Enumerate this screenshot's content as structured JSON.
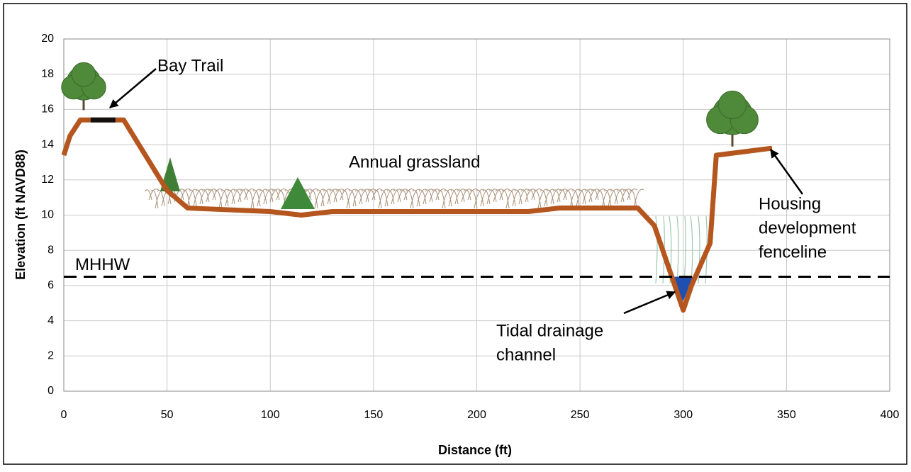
{
  "chart_data": {
    "type": "line",
    "xlabel": "Distance (ft)",
    "ylabel": "Elevation (ft NAVD88)",
    "xlim": [
      0,
      400
    ],
    "xticks": [
      0,
      50,
      100,
      150,
      200,
      250,
      300,
      350,
      400
    ],
    "ylim": [
      0,
      20
    ],
    "yticks": [
      0,
      2,
      4,
      6,
      8,
      10,
      12,
      14,
      16,
      18,
      20
    ],
    "grid": true,
    "series": [
      {
        "color": "#b5561f",
        "x": [
          0,
          3,
          8,
          29,
          50,
          60,
          100,
          115,
          130,
          225,
          240,
          278,
          286,
          293,
          300,
          304,
          313,
          316,
          343
        ],
        "values": [
          13.4,
          14.5,
          15.4,
          15.4,
          11.4,
          10.4,
          10.2,
          10.0,
          10.2,
          10.2,
          10.4,
          10.4,
          9.4,
          7.0,
          4.6,
          6.0,
          8.4,
          13.4,
          13.8
        ]
      },
      {
        "color": "#111111",
        "x": [
          13,
          25
        ],
        "values": [
          15.4,
          15.4
        ]
      }
    ],
    "reference_lines": [
      {
        "label": "MHHW",
        "value": 6.5,
        "color": "#000000"
      }
    ],
    "annotations": [
      {
        "lines": [
          "Bay Trail"
        ]
      },
      {
        "lines": [
          "Annual grassland"
        ]
      },
      {
        "lines": [
          "Tidal drainage",
          "channel"
        ]
      },
      {
        "lines": [
          "Housing",
          "development",
          "fenceline"
        ]
      }
    ]
  }
}
